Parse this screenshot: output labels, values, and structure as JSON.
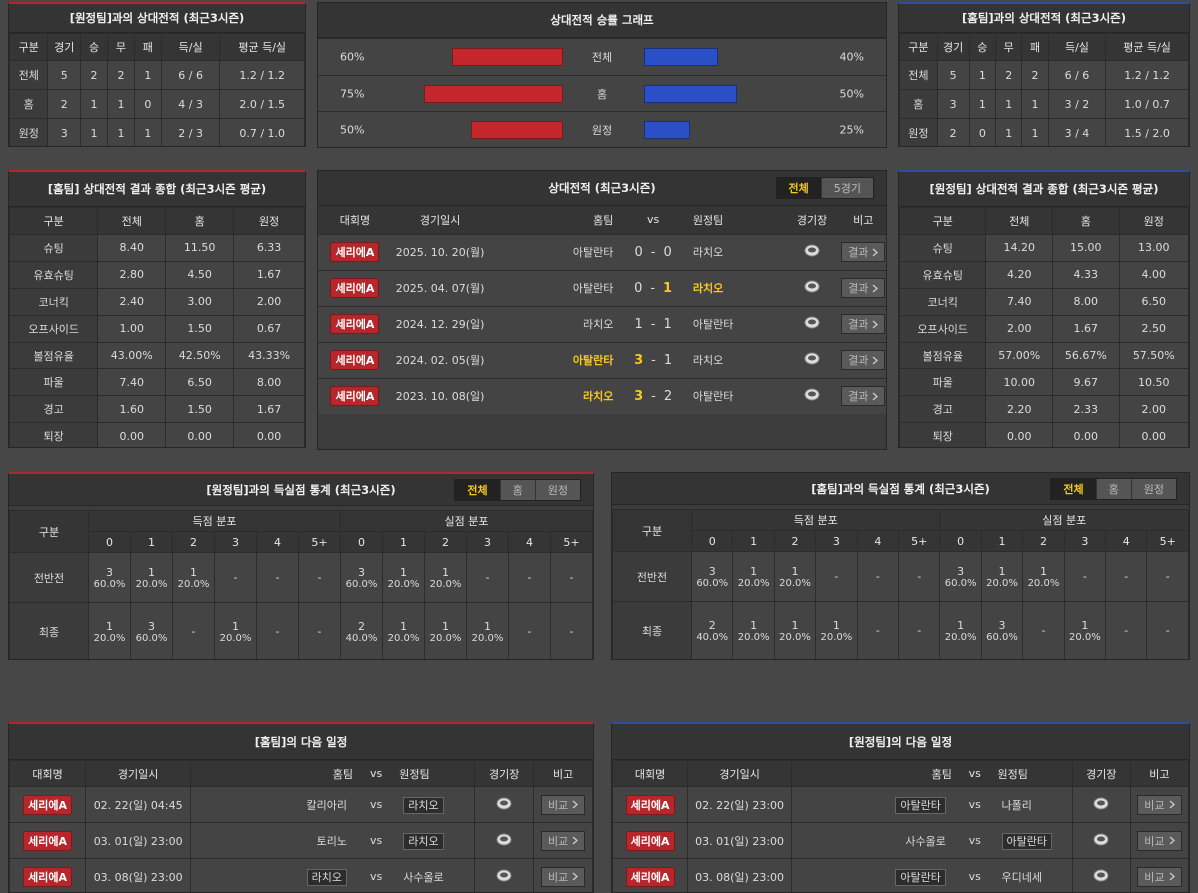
{
  "h2h_left": {
    "title": "[원정팀]과의 상대전적 (최근3시즌)",
    "headers": [
      "구분",
      "경기",
      "승",
      "무",
      "패",
      "득/실",
      "평균 득/실"
    ],
    "rows": [
      [
        "전체",
        "5",
        "2",
        "2",
        "1",
        "6 / 6",
        "1.2 / 1.2"
      ],
      [
        "홈",
        "2",
        "1",
        "1",
        "0",
        "4 / 3",
        "2.0 / 1.5"
      ],
      [
        "원정",
        "3",
        "1",
        "1",
        "1",
        "2 / 3",
        "0.7 / 1.0"
      ]
    ]
  },
  "win_graph": {
    "title": "상대전적 승률 그래프",
    "categories": [
      "전체",
      "홈",
      "원정"
    ],
    "home_values": [
      60,
      75,
      50
    ],
    "home_labels": [
      "60%",
      "75%",
      "50%"
    ],
    "home_color": "#c4272b",
    "away_values": [
      40,
      50,
      25
    ],
    "away_labels": [
      "40%",
      "50%",
      "25%"
    ],
    "away_color": "#2b4fc6"
  },
  "h2h_right": {
    "title": "[홈팀]과의 상대전적 (최근3시즌)",
    "headers": [
      "구분",
      "경기",
      "승",
      "무",
      "패",
      "득/실",
      "평균 득/실"
    ],
    "rows": [
      [
        "전체",
        "5",
        "1",
        "2",
        "2",
        "6 / 6",
        "1.2 / 1.2"
      ],
      [
        "홈",
        "3",
        "1",
        "1",
        "1",
        "3 / 2",
        "1.0 / 0.7"
      ],
      [
        "원정",
        "2",
        "0",
        "1",
        "1",
        "3 / 4",
        "1.5 / 2.0"
      ]
    ]
  },
  "summary_left": {
    "title": "[홈팀] 상대전적 결과 종합 (최근3시즌 평균)",
    "headers": [
      "구분",
      "전체",
      "홈",
      "원정"
    ],
    "rows": [
      [
        "슈팅",
        "8.40",
        "11.50",
        "6.33"
      ],
      [
        "유효슈팅",
        "2.80",
        "4.50",
        "1.67"
      ],
      [
        "코너킥",
        "2.40",
        "3.00",
        "2.00"
      ],
      [
        "오프사이드",
        "1.00",
        "1.50",
        "0.67"
      ],
      [
        "볼점유율",
        "43.00%",
        "42.50%",
        "43.33%"
      ],
      [
        "파울",
        "7.40",
        "6.50",
        "8.00"
      ],
      [
        "경고",
        "1.60",
        "1.50",
        "1.67"
      ],
      [
        "퇴장",
        "0.00",
        "0.00",
        "0.00"
      ]
    ]
  },
  "summary_right": {
    "title": "[원정팀] 상대전적 결과 종합 (최근3시즌 평균)",
    "headers": [
      "구분",
      "전체",
      "홈",
      "원정"
    ],
    "rows": [
      [
        "슈팅",
        "14.20",
        "15.00",
        "13.00"
      ],
      [
        "유효슈팅",
        "4.20",
        "4.33",
        "4.00"
      ],
      [
        "코너킥",
        "7.40",
        "8.00",
        "6.50"
      ],
      [
        "오프사이드",
        "2.00",
        "1.67",
        "2.50"
      ],
      [
        "볼점유율",
        "57.00%",
        "56.67%",
        "57.50%"
      ],
      [
        "파울",
        "10.00",
        "9.67",
        "10.50"
      ],
      [
        "경고",
        "2.20",
        "2.33",
        "2.00"
      ],
      [
        "퇴장",
        "0.00",
        "0.00",
        "0.00"
      ]
    ]
  },
  "matches": {
    "title": "상대전적 (최근3시즌)",
    "tabs": [
      "전체",
      "5경기"
    ],
    "headers": [
      "대회명",
      "경기일시",
      "홈팀",
      "vs",
      "원정팀",
      "경기장",
      "비고"
    ],
    "score_sep": "-",
    "button": "결과",
    "rows": [
      {
        "league": "세리에A",
        "date": "2025. 10. 20(월)",
        "home": "아탈란타",
        "home_score": 0,
        "away_score": 0,
        "away": "라치오",
        "winner": null
      },
      {
        "league": "세리에A",
        "date": "2025. 04. 07(월)",
        "home": "아탈란타",
        "home_score": 0,
        "away_score": 1,
        "away": "라치오",
        "winner": "away"
      },
      {
        "league": "세리에A",
        "date": "2024. 12. 29(일)",
        "home": "라치오",
        "home_score": 1,
        "away_score": 1,
        "away": "아탈란타",
        "winner": null
      },
      {
        "league": "세리에A",
        "date": "2024. 02. 05(월)",
        "home": "아탈란타",
        "home_score": 3,
        "away_score": 1,
        "away": "라치오",
        "winner": "home"
      },
      {
        "league": "세리에A",
        "date": "2023. 10. 08(일)",
        "home": "라치오",
        "home_score": 3,
        "away_score": 2,
        "away": "아탈란타",
        "winner": "home"
      }
    ]
  },
  "stats_left": {
    "title": "[원정팀]과의 득실점 통계 (최근3시즌)",
    "tabs": [
      "전체",
      "홈",
      "원정"
    ],
    "first_header": "구분",
    "groups": [
      "득점 분포",
      "실점 분포"
    ],
    "goal_cols": [
      "0",
      "1",
      "2",
      "3",
      "4",
      "5+"
    ],
    "rows": [
      {
        "label": "전반전",
        "scored": [
          [
            "3",
            "60.0%"
          ],
          [
            "1",
            "20.0%"
          ],
          [
            "1",
            "20.0%"
          ],
          [
            "-"
          ],
          [
            "-"
          ],
          [
            "-"
          ]
        ],
        "conceded": [
          [
            "3",
            "60.0%"
          ],
          [
            "1",
            "20.0%"
          ],
          [
            "1",
            "20.0%"
          ],
          [
            "-"
          ],
          [
            "-"
          ],
          [
            "-"
          ]
        ]
      },
      {
        "label": "최종",
        "scored": [
          [
            "1",
            "20.0%"
          ],
          [
            "3",
            "60.0%"
          ],
          [
            "-"
          ],
          [
            "1",
            "20.0%"
          ],
          [
            "-"
          ],
          [
            "-"
          ]
        ],
        "conceded": [
          [
            "2",
            "40.0%"
          ],
          [
            "1",
            "20.0%"
          ],
          [
            "1",
            "20.0%"
          ],
          [
            "1",
            "20.0%"
          ],
          [
            "-"
          ],
          [
            "-"
          ]
        ]
      }
    ]
  },
  "stats_right": {
    "title": "[홈팀]과의 득실점 통계 (최근3시즌)",
    "tabs": [
      "전체",
      "홈",
      "원정"
    ],
    "first_header": "구분",
    "groups": [
      "득점 분포",
      "실점 분포"
    ],
    "goal_cols": [
      "0",
      "1",
      "2",
      "3",
      "4",
      "5+"
    ],
    "rows": [
      {
        "label": "전반전",
        "scored": [
          [
            "3",
            "60.0%"
          ],
          [
            "1",
            "20.0%"
          ],
          [
            "1",
            "20.0%"
          ],
          [
            "-"
          ],
          [
            "-"
          ],
          [
            "-"
          ]
        ],
        "conceded": [
          [
            "3",
            "60.0%"
          ],
          [
            "1",
            "20.0%"
          ],
          [
            "1",
            "20.0%"
          ],
          [
            "-"
          ],
          [
            "-"
          ],
          [
            "-"
          ]
        ]
      },
      {
        "label": "최종",
        "scored": [
          [
            "2",
            "40.0%"
          ],
          [
            "1",
            "20.0%"
          ],
          [
            "1",
            "20.0%"
          ],
          [
            "1",
            "20.0%"
          ],
          [
            "-"
          ],
          [
            "-"
          ]
        ],
        "conceded": [
          [
            "1",
            "20.0%"
          ],
          [
            "3",
            "60.0%"
          ],
          [
            "-"
          ],
          [
            "1",
            "20.0%"
          ],
          [
            "-"
          ],
          [
            "-"
          ]
        ]
      }
    ]
  },
  "next_left": {
    "title": "[홈팀]의 다음 일정",
    "headers": [
      "대회명",
      "경기일시",
      "홈팀",
      "vs",
      "원정팀",
      "경기장",
      "비고"
    ],
    "button": "비교",
    "rows": [
      {
        "league": "세리에A",
        "date": "02. 22(일) 04:45",
        "home": "칼리아리",
        "away": "라치오",
        "highlight": "away"
      },
      {
        "league": "세리에A",
        "date": "03. 01(일) 23:00",
        "home": "토리노",
        "away": "라치오",
        "highlight": "away"
      },
      {
        "league": "세리에A",
        "date": "03. 08(일) 23:00",
        "home": "라치오",
        "away": "사수올로",
        "highlight": "home"
      }
    ]
  },
  "next_right": {
    "title": "[원정팀]의 다음 일정",
    "headers": [
      "대회명",
      "경기일시",
      "홈팀",
      "vs",
      "원정팀",
      "경기장",
      "비고"
    ],
    "button": "비교",
    "rows": [
      {
        "league": "세리에A",
        "date": "02. 22(일) 23:00",
        "home": "아탈란타",
        "away": "나폴리",
        "highlight": "home"
      },
      {
        "league": "세리에A",
        "date": "03. 01(일) 23:00",
        "home": "사수올로",
        "away": "아탈란타",
        "highlight": "away"
      },
      {
        "league": "세리에A",
        "date": "03. 08(일) 23:00",
        "home": "아탈란타",
        "away": "우디네세",
        "highlight": "home"
      }
    ]
  }
}
